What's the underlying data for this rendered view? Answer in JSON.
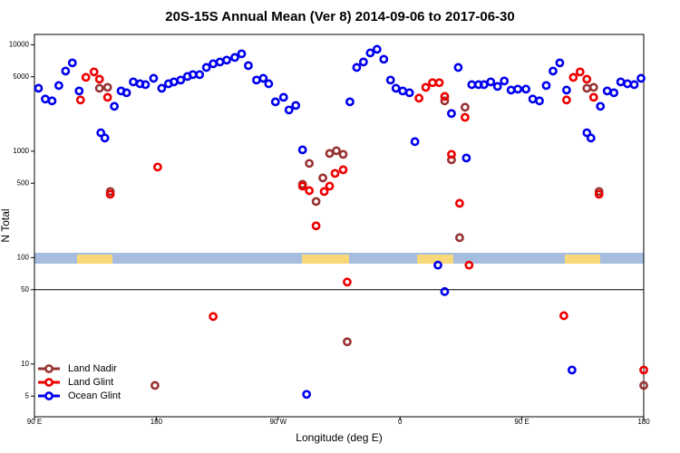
{
  "chart_data": {
    "type": "scatter",
    "title": "20S-15S Annual Mean (Ver 8)   2014-09-06 to 2017-06-30",
    "x_label": "Longitude (deg E)",
    "y_label": "N Total",
    "log_y": true,
    "xlim": [
      90,
      540
    ],
    "xticks": [
      {
        "value": 90,
        "label": "90 E"
      },
      180,
      {
        "value": 270,
        "label": "90 W"
      },
      {
        "value": 360,
        "label": "0"
      },
      {
        "value": 450,
        "label": "90 E"
      },
      {
        "value": 540,
        "label": "180"
      }
    ],
    "ylim": [
      3.2,
      12500
    ],
    "yticks": [
      5,
      10,
      50,
      100,
      500,
      1000,
      5000,
      10000
    ],
    "series": [
      {
        "name": "Land Nadir",
        "color": "#993333",
        "x": [
          138,
          144,
          146,
          179,
          288,
          293,
          298,
          303,
          308,
          313,
          318,
          321,
          393,
          398,
          404,
          408,
          498,
          503,
          507,
          540
        ],
        "values": [
          3900,
          3980,
          418,
          6.3,
          489,
          768,
          337,
          561,
          952,
          1010,
          934,
          16.2,
          2970,
          830,
          154,
          2590,
          3900,
          3980,
          418,
          6.3
        ]
      },
      {
        "name": "Land Glint",
        "color": "#ee0000",
        "x": [
          124,
          128,
          134,
          138,
          144,
          146,
          181,
          222,
          288,
          293,
          298,
          304,
          308,
          312,
          318,
          321,
          374,
          379,
          384,
          389,
          393,
          398,
          404,
          408,
          411,
          481,
          483,
          488,
          493,
          498,
          503,
          507,
          540
        ],
        "values": [
          3030,
          4940,
          5560,
          4750,
          3210,
          394,
          710,
          28,
          470,
          426,
          199,
          418,
          470,
          619,
          669,
          59,
          3150,
          3980,
          4400,
          4400,
          3270,
          934,
          324,
          2080,
          85,
          28.5,
          3030,
          4940,
          5560,
          4750,
          3210,
          394,
          8.8
        ]
      },
      {
        "name": "Ocean Glint",
        "color": "#0000ee",
        "x": [
          93,
          98,
          103,
          108,
          113,
          118,
          123,
          139,
          142,
          149,
          154,
          158,
          163,
          168,
          172,
          178,
          184,
          189,
          193,
          198,
          203,
          207,
          212,
          217,
          222,
          227,
          232,
          238,
          243,
          248,
          254,
          259,
          263,
          268,
          274,
          278,
          283,
          288,
          291,
          323,
          328,
          333,
          338,
          343,
          348,
          353,
          357,
          362,
          367,
          371,
          388,
          393,
          398,
          403,
          409,
          413,
          418,
          422,
          427,
          432,
          437,
          442,
          447,
          453,
          458,
          463,
          468,
          473,
          478,
          483,
          487,
          498,
          501,
          508,
          513,
          518,
          523,
          528,
          533,
          538
        ],
        "values": [
          3900,
          3090,
          2970,
          4140,
          5660,
          6760,
          3680,
          1490,
          1330,
          2640,
          3680,
          3540,
          4480,
          4300,
          4220,
          4840,
          3900,
          4300,
          4480,
          4660,
          5040,
          5240,
          5240,
          6120,
          6630,
          6890,
          7170,
          7600,
          8220,
          6370,
          4660,
          4840,
          4300,
          2910,
          3210,
          2440,
          2690,
          1030,
          5.2,
          2910,
          6120,
          6890,
          8380,
          9060,
          7310,
          4660,
          3900,
          3680,
          3540,
          1230,
          85,
          48,
          2260,
          6120,
          863,
          4220,
          4220,
          4220,
          4480,
          4060,
          4570,
          3750,
          3830,
          3830,
          3090,
          2970,
          4140,
          5660,
          6760,
          3750,
          8.8,
          1490,
          1330,
          2640,
          3680,
          3540,
          4480,
          4300,
          4220,
          4840
        ]
      }
    ]
  }
}
